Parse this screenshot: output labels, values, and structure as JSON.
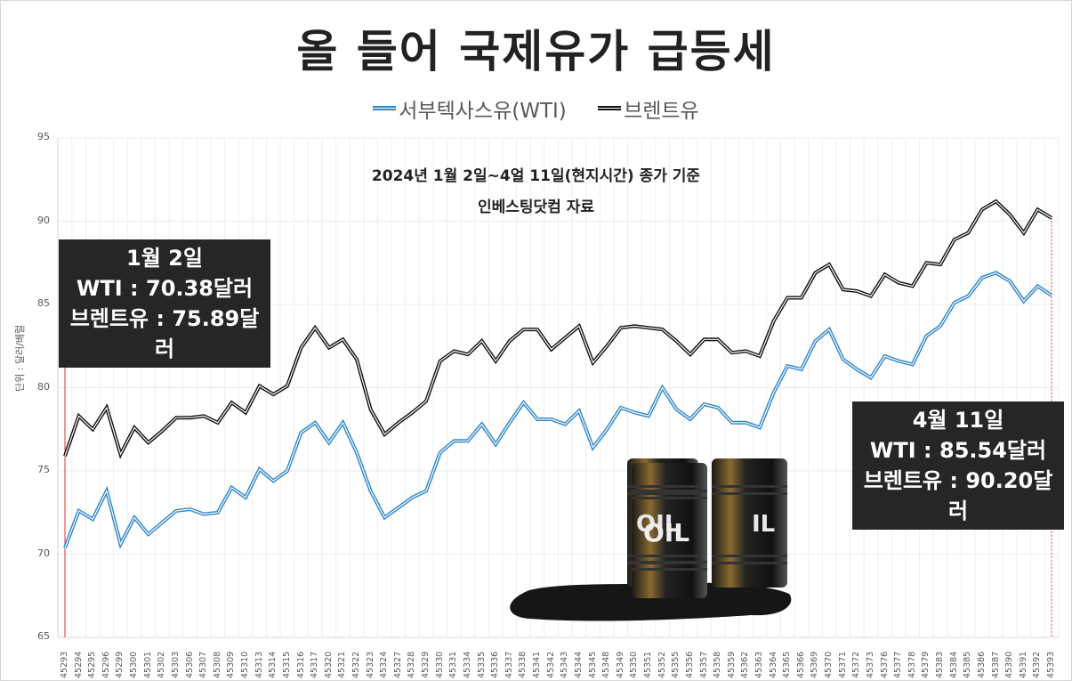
{
  "header": {
    "title": "올 들어 국제유가 급등세"
  },
  "legend": [
    {
      "label": "서부텍사스유(WTI)",
      "color": "#2E86C8"
    },
    {
      "label": "브렌트유",
      "color": "#111111"
    }
  ],
  "notes": {
    "line1": "2024년 1월 2일~4얼 11일(현지시간) 종가 기준",
    "line2": "인베스팅닷컴 자료"
  },
  "callouts": {
    "start": {
      "date": "1월 2일",
      "wti": "WTI : 70.38달러",
      "brent": "브렌트유 : 75.89달러"
    },
    "end": {
      "date": "4월 11일",
      "wti": "WTI : 85.54달러",
      "brent": "브렌트유 : 90.20달러"
    }
  },
  "image": {
    "barrel_label": "OIL"
  },
  "chart_data": {
    "type": "line",
    "title": "올 들어 국제유가 급등세",
    "subtitle": "2024년 1월 2일~4얼 11일(현지시간) 종가 기준 / 인베스팅닷컴 자료",
    "xlabel": "",
    "ylabel": "단위 : 달러/배럴",
    "ylim": [
      65,
      95
    ],
    "yticks": [
      65,
      70,
      75,
      80,
      85,
      90,
      95
    ],
    "grid": true,
    "legend_position": "top",
    "x": [
      "45293",
      "45294",
      "45295",
      "45296",
      "45299",
      "45300",
      "45301",
      "45302",
      "45303",
      "45306",
      "45307",
      "45308",
      "45309",
      "45310",
      "45313",
      "45314",
      "45315",
      "45316",
      "45317",
      "45320",
      "45321",
      "45322",
      "45323",
      "45324",
      "45327",
      "45328",
      "45329",
      "45330",
      "45331",
      "45334",
      "45335",
      "45336",
      "45337",
      "45338",
      "45341",
      "45342",
      "45343",
      "45344",
      "45345",
      "45348",
      "45349",
      "45350",
      "45351",
      "45352",
      "45355",
      "45356",
      "45357",
      "45358",
      "45359",
      "45362",
      "45363",
      "45364",
      "45365",
      "45366",
      "45369",
      "45370",
      "45371",
      "45372",
      "45373",
      "45376",
      "45377",
      "45378",
      "45379",
      "45383",
      "45384",
      "45385",
      "45386",
      "45387",
      "45390",
      "45391",
      "45392",
      "45393"
    ],
    "series": [
      {
        "name": "서부텍사스유(WTI)",
        "color": "#2E86C8",
        "values": [
          70.38,
          72.6,
          72.1,
          73.8,
          70.6,
          72.2,
          71.2,
          71.9,
          72.6,
          72.7,
          72.4,
          72.5,
          74.0,
          73.4,
          75.1,
          74.4,
          75.0,
          77.3,
          77.9,
          76.7,
          77.9,
          76.1,
          73.8,
          72.2,
          72.8,
          73.4,
          73.8,
          76.1,
          76.8,
          76.8,
          77.8,
          76.6,
          77.9,
          79.1,
          78.1,
          78.1,
          77.8,
          78.6,
          76.4,
          77.5,
          78.8,
          78.5,
          78.3,
          80.0,
          78.7,
          78.1,
          79.0,
          78.8,
          77.9,
          77.9,
          77.6,
          79.7,
          81.3,
          81.1,
          82.8,
          83.5,
          81.7,
          81.1,
          80.6,
          81.9,
          81.6,
          81.4,
          83.1,
          83.7,
          85.1,
          85.5,
          86.6,
          86.9,
          86.4,
          85.2,
          86.1,
          85.54
        ]
      },
      {
        "name": "브렌트유",
        "color": "#111111",
        "values": [
          75.89,
          78.3,
          77.5,
          78.8,
          76.0,
          77.6,
          76.7,
          77.4,
          78.2,
          78.2,
          78.3,
          77.9,
          79.1,
          78.5,
          80.1,
          79.6,
          80.1,
          82.4,
          83.6,
          82.4,
          82.9,
          81.7,
          78.7,
          77.2,
          77.9,
          78.5,
          79.2,
          81.6,
          82.2,
          82.0,
          82.8,
          81.6,
          82.8,
          83.5,
          83.5,
          82.3,
          83.0,
          83.7,
          81.5,
          82.5,
          83.6,
          83.7,
          83.6,
          83.5,
          82.8,
          82.0,
          82.9,
          82.9,
          82.1,
          82.2,
          81.9,
          84.0,
          85.4,
          85.4,
          86.9,
          87.4,
          85.9,
          85.8,
          85.5,
          86.8,
          86.3,
          86.1,
          87.5,
          87.4,
          88.9,
          89.3,
          90.7,
          91.2,
          90.4,
          89.3,
          90.7,
          90.2
        ]
      }
    ],
    "annotations": [
      {
        "x": "45293",
        "text": "1월 2일 / WTI : 70.38달러 / 브렌트유 : 75.89달러"
      },
      {
        "x": "45393",
        "text": "4월 11일 / WTI : 85.54달러 / 브렌트유 : 90.20달러"
      }
    ]
  }
}
